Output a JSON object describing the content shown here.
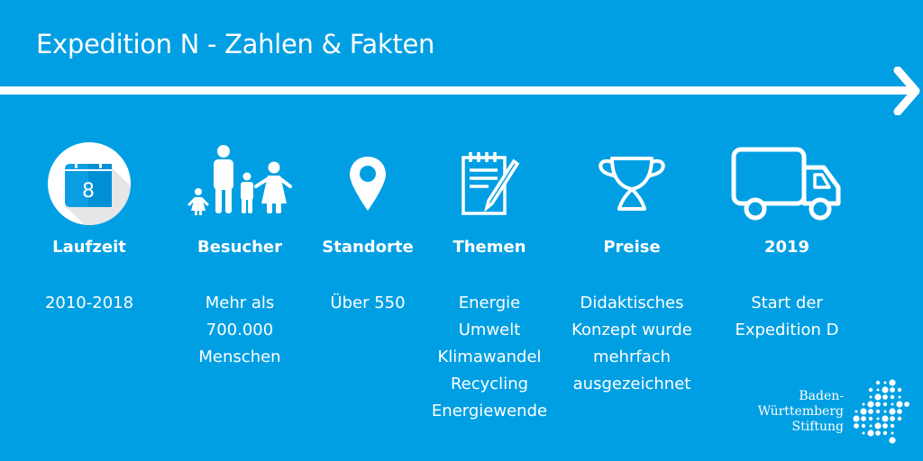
{
  "title": "Expedition N - Zahlen & Fakten",
  "colors": {
    "background": "#009fe3",
    "foreground": "#ffffff"
  },
  "columns": [
    {
      "icon": "calendar-icon",
      "calendar_number": "8",
      "label": "Laufzeit",
      "lines": [
        "2010-2018"
      ]
    },
    {
      "icon": "family-icon",
      "label": "Besucher",
      "lines": [
        "Mehr als",
        "700.000",
        "Menschen"
      ]
    },
    {
      "icon": "location-pin-icon",
      "label": "Standorte",
      "lines": [
        "Über 550"
      ]
    },
    {
      "icon": "notepad-pencil-icon",
      "label": "Themen",
      "lines": [
        "Energie",
        "Umwelt",
        "Klimawandel",
        "Recycling",
        "Energiewende"
      ]
    },
    {
      "icon": "trophy-icon",
      "label": "Preise",
      "lines": [
        "Didaktisches",
        "Konzept wurde",
        "mehrfach",
        "ausgezeichnet"
      ]
    },
    {
      "icon": "truck-icon",
      "label": "2019",
      "lines": [
        "Start der",
        "Expedition D"
      ]
    }
  ],
  "logo": {
    "lines": [
      "Baden-",
      "Württemberg",
      "Stiftung"
    ]
  }
}
